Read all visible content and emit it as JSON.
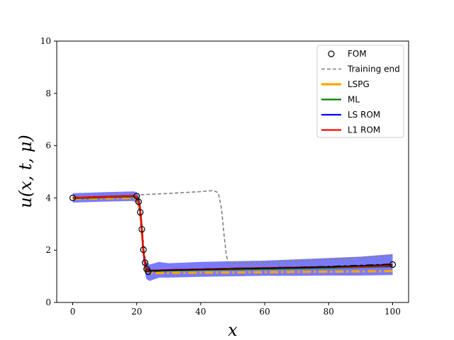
{
  "chart_data": {
    "type": "line",
    "title": "",
    "xlabel": "x",
    "ylabel": "u(x, t, μ)",
    "xlim": [
      -5,
      105
    ],
    "ylim": [
      0,
      10
    ],
    "xticks": [
      0,
      20,
      40,
      60,
      80,
      100
    ],
    "yticks": [
      0,
      2,
      4,
      6,
      8,
      10
    ],
    "grid": false,
    "legend_position": "top-right",
    "colors": {
      "fom": "#000000",
      "training_end": "#808080",
      "lspg": "#ffa500",
      "ml": "#008000",
      "ls_rom": "#0000ff",
      "l1_rom": "#ff0000",
      "band": "#3333ff"
    },
    "series": [
      {
        "name": "FOM",
        "style": "markers",
        "x": [
          0,
          20,
          20.6,
          21.1,
          21.6,
          22.1,
          22.6,
          23.1,
          23.6,
          100
        ],
        "y": [
          4.0,
          4.07,
          3.85,
          3.45,
          2.8,
          2.02,
          1.52,
          1.28,
          1.18,
          1.45
        ]
      },
      {
        "name": "Training end",
        "style": "dashed",
        "x": [
          0,
          10,
          19,
          20,
          21,
          30,
          40,
          44,
          45.5,
          46.5,
          47.3,
          48,
          48.7,
          50,
          60,
          70,
          80,
          90,
          100
        ],
        "y": [
          4.05,
          4.08,
          4.1,
          4.1,
          4.12,
          4.17,
          4.24,
          4.28,
          4.2,
          3.6,
          2.6,
          1.8,
          1.52,
          1.5,
          1.53,
          1.58,
          1.64,
          1.72,
          1.8
        ]
      },
      {
        "name": "LSPG",
        "style": "dashdot",
        "x": [
          0,
          10,
          19,
          20,
          21,
          21.5,
          22,
          22.5,
          23,
          24,
          30,
          40,
          50,
          60,
          70,
          80,
          90,
          100
        ],
        "y": [
          3.96,
          3.98,
          4.0,
          3.95,
          3.6,
          2.9,
          2.1,
          1.55,
          1.22,
          1.12,
          1.13,
          1.14,
          1.15,
          1.16,
          1.17,
          1.18,
          1.19,
          1.2
        ]
      },
      {
        "name": "ML",
        "style": "solid",
        "x": [
          0,
          10,
          19,
          20,
          21,
          21.5,
          22,
          22.5,
          23,
          24,
          30,
          40,
          50,
          60,
          70,
          80,
          90,
          100
        ],
        "y": [
          3.98,
          4.02,
          4.05,
          4.02,
          3.65,
          2.95,
          2.05,
          1.5,
          1.22,
          1.2,
          1.22,
          1.24,
          1.26,
          1.28,
          1.3,
          1.32,
          1.35,
          1.38
        ]
      },
      {
        "name": "LS ROM",
        "style": "solid",
        "x": [
          0,
          10,
          19,
          20,
          21,
          21.5,
          22,
          22.5,
          23,
          24,
          30,
          40,
          50,
          60,
          70,
          80,
          90,
          100
        ],
        "y": [
          4.0,
          4.04,
          4.08,
          4.05,
          3.7,
          3.0,
          2.1,
          1.52,
          1.24,
          1.22,
          1.24,
          1.27,
          1.3,
          1.32,
          1.34,
          1.36,
          1.38,
          1.4
        ]
      },
      {
        "name": "L1 ROM",
        "style": "solid",
        "x": [
          0,
          10,
          19,
          20,
          21,
          21.5,
          22,
          22.5,
          23,
          24,
          30,
          40,
          50,
          60,
          70,
          80,
          90,
          100
        ],
        "y": [
          4.0,
          4.04,
          4.08,
          4.05,
          3.7,
          3.0,
          2.1,
          1.52,
          1.24,
          1.22,
          1.24,
          1.27,
          1.3,
          1.32,
          1.34,
          1.36,
          1.38,
          1.42
        ]
      }
    ],
    "band": {
      "x": [
        0,
        10,
        19,
        20,
        21,
        21.5,
        22,
        22.5,
        23,
        24,
        27,
        30,
        40,
        50,
        60,
        70,
        80,
        90,
        100
      ],
      "lower": [
        3.82,
        3.86,
        3.88,
        3.8,
        3.4,
        2.6,
        1.7,
        1.2,
        0.9,
        0.82,
        0.95,
        0.95,
        0.98,
        1.0,
        1.02,
        1.02,
        1.03,
        1.03,
        1.05
      ],
      "upper": [
        4.18,
        4.22,
        4.25,
        4.22,
        3.95,
        3.3,
        2.5,
        1.85,
        1.55,
        1.45,
        1.55,
        1.5,
        1.55,
        1.58,
        1.6,
        1.65,
        1.7,
        1.75,
        1.85
      ]
    },
    "fom_dense": {
      "x": [
        0,
        10,
        19,
        20,
        20.6,
        21.1,
        21.6,
        22.1,
        22.6,
        23.1,
        23.6,
        24,
        30,
        40,
        50,
        60,
        70,
        80,
        90,
        100
      ],
      "y": [
        4.0,
        4.04,
        4.07,
        4.07,
        3.85,
        3.45,
        2.8,
        2.02,
        1.52,
        1.28,
        1.18,
        1.2,
        1.23,
        1.26,
        1.29,
        1.31,
        1.33,
        1.36,
        1.4,
        1.45
      ]
    }
  }
}
